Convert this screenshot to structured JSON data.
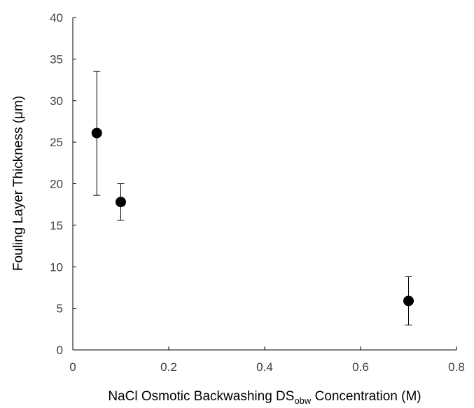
{
  "chart_data": {
    "type": "scatter",
    "title": "",
    "xlabel_parts": {
      "main": "NaCl Osmotic Backwashing DS",
      "subscript": "obw",
      "tail": " Concentration (M)"
    },
    "ylabel": "Fouling Layer Thickness (μm)",
    "xlim": [
      0,
      0.8
    ],
    "ylim": [
      0,
      40
    ],
    "xticks": [
      0,
      0.2,
      0.4,
      0.6,
      0.8
    ],
    "yticks": [
      0,
      5,
      10,
      15,
      20,
      25,
      30,
      35,
      40
    ],
    "xtick_labels": [
      "0",
      "0.2",
      "0.4",
      "0.6",
      "0.8"
    ],
    "ytick_labels": [
      "0",
      "5",
      "10",
      "15",
      "20",
      "25",
      "30",
      "35",
      "40"
    ],
    "grid": false,
    "legend": "none",
    "marker_color": "#000000",
    "points": [
      {
        "x": 0.05,
        "y": 26.1,
        "err_low": 18.6,
        "err_high": 33.5
      },
      {
        "x": 0.1,
        "y": 17.8,
        "err_low": 15.6,
        "err_high": 20.0
      },
      {
        "x": 0.7,
        "y": 5.9,
        "err_low": 3.0,
        "err_high": 8.8
      }
    ]
  }
}
